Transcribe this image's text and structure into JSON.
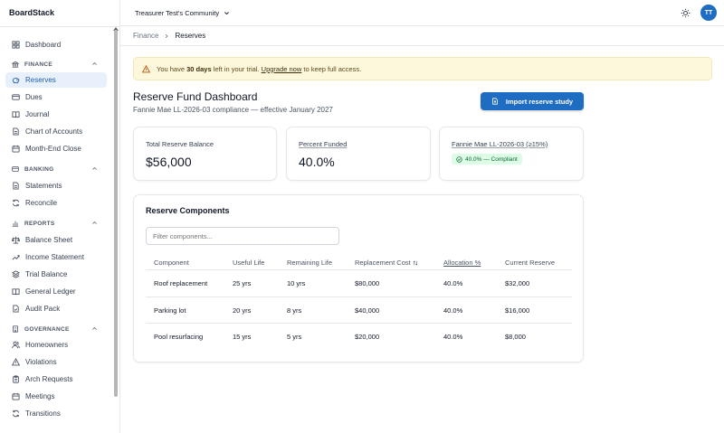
{
  "app": {
    "name": "BoardStack"
  },
  "topbar": {
    "community": "Treasurer Test's Community",
    "avatar_initials": "TT"
  },
  "sidebar": {
    "dashboard": "Dashboard",
    "sections": [
      {
        "title": "FINANCE",
        "items": [
          "Reserves",
          "Dues",
          "Journal",
          "Chart of Accounts",
          "Month-End Close"
        ]
      },
      {
        "title": "BANKING",
        "items": [
          "Statements",
          "Reconcile"
        ]
      },
      {
        "title": "REPORTS",
        "items": [
          "Balance Sheet",
          "Income Statement",
          "Trial Balance",
          "General Ledger",
          "Audit Pack"
        ]
      },
      {
        "title": "GOVERNANCE",
        "items": [
          "Homeowners",
          "Violations",
          "Arch Requests",
          "Meetings",
          "Transitions"
        ]
      }
    ],
    "active": "Reserves"
  },
  "breadcrumb": {
    "parent": "Finance",
    "current": "Reserves"
  },
  "trial_banner": {
    "prefix": "You have ",
    "days": "30 days",
    "middle": " left in your trial. ",
    "link": "Upgrade now",
    "suffix": " to keep full access."
  },
  "page": {
    "title": "Reserve Fund Dashboard",
    "subtitle": "Fannie Mae LL-2026-03 compliance — effective January 2027",
    "import_button": "Import reserve study"
  },
  "cards": {
    "total_label": "Total Reserve Balance",
    "total_value": "$56,000",
    "funded_label": "Percent Funded",
    "funded_value": "40.0%",
    "fannie_label": "Fannie Mae LL-2026-03 (≥15%)",
    "fannie_badge": "40.0% — Compliant"
  },
  "components": {
    "title": "Reserve Components",
    "filter_placeholder": "Filter components...",
    "headers": [
      "Component",
      "Useful Life",
      "Remaining Life",
      "Replacement Cost",
      "Allocation %",
      "Current Reserve"
    ],
    "rows": [
      [
        "Roof replacement",
        "25 yrs",
        "10 yrs",
        "$80,000",
        "40.0%",
        "$32,000"
      ],
      [
        "Parking lot",
        "20 yrs",
        "8 yrs",
        "$40,000",
        "40.0%",
        "$16,000"
      ],
      [
        "Pool resurfacing",
        "15 yrs",
        "5 yrs",
        "$20,000",
        "40.0%",
        "$8,000"
      ]
    ]
  },
  "colors": {
    "primary": "#1f6dc2",
    "active_bg": "#e8f1fb",
    "trial_bg": "#fdf7dc",
    "badge_bg": "#dcfce7",
    "badge_text": "#166534"
  }
}
